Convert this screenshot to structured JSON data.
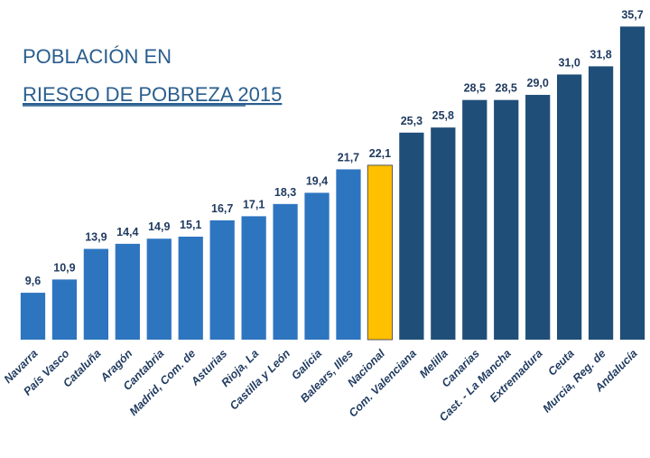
{
  "chart_data": {
    "type": "bar",
    "title_lines": [
      "POBLACIÓN EN",
      "RIESGO DE POBREZA 2015"
    ],
    "categories": [
      "Navarra",
      "País Vasco",
      "Cataluña",
      "Aragón",
      "Cantabria",
      "Madrid, Com. de",
      "Asturias",
      "Rioja, La",
      "Castilla y León",
      "Galicia",
      "Balears, Illes",
      "Nacional",
      "Com. Valenciana",
      "Melilla",
      "Canarias",
      "Cast. - La Mancha",
      "Extremadura",
      "Ceuta",
      "Murcia, Reg. de",
      "Andalucía"
    ],
    "values": [
      9.6,
      10.9,
      13.9,
      14.4,
      14.9,
      15.1,
      16.7,
      17.1,
      18.3,
      19.4,
      21.7,
      22.1,
      25.3,
      25.8,
      28.5,
      28.5,
      29.0,
      31.0,
      31.8,
      35.7
    ],
    "value_labels": [
      "9,6",
      "10,9",
      "13,9",
      "14,4",
      "14,9",
      "15,1",
      "16,7",
      "17,1",
      "18,3",
      "19,4",
      "21,7",
      "22,1",
      "25,3",
      "25,8",
      "28,5",
      "28,5",
      "29,0",
      "31,0",
      "31,8",
      "35,7"
    ],
    "colors": [
      "#2e75c0",
      "#2e75c0",
      "#2e75c0",
      "#2e75c0",
      "#2e75c0",
      "#2e75c0",
      "#2e75c0",
      "#2e75c0",
      "#2e75c0",
      "#2e75c0",
      "#2e75c0",
      "#ffc000",
      "#1f4e79",
      "#1f4e79",
      "#1f4e79",
      "#1f4e79",
      "#1f4e79",
      "#1f4e79",
      "#1f4e79",
      "#1f4e79"
    ],
    "ylim": [
      5,
      36
    ]
  }
}
